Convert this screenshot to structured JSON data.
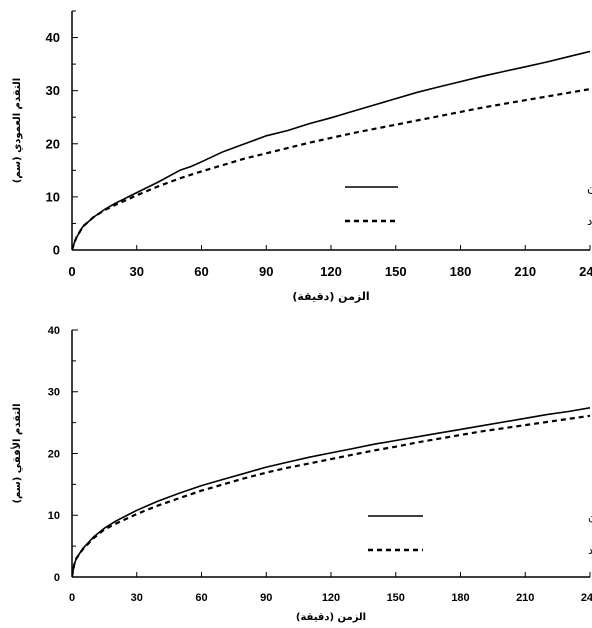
{
  "chart_data": [
    {
      "type": "line",
      "xlabel": "الزمن (دقيقة)",
      "ylabel": "التقدم العمودي (سم)",
      "xlim": [
        0,
        240
      ],
      "ylim": [
        0,
        45
      ],
      "xticks": [
        0,
        30,
        60,
        90,
        120,
        150,
        180,
        210,
        240
      ],
      "yticks": [
        0,
        10,
        20,
        30,
        40
      ],
      "grid": false,
      "legend_position": "right",
      "series": [
        {
          "name": "التقدم الناتج من تداخل منقطين",
          "style": "solid",
          "x": [
            0,
            1,
            2,
            5,
            10,
            15,
            20,
            30,
            40,
            50,
            55,
            60,
            70,
            80,
            90,
            100,
            110,
            120,
            130,
            140,
            150,
            160,
            170,
            180,
            190,
            200,
            210,
            220,
            230,
            240,
            245
          ],
          "y": [
            0,
            1.3,
            2.3,
            4.4,
            6.2,
            7.6,
            8.8,
            10.8,
            12.8,
            15.0,
            15.7,
            16.6,
            18.5,
            20.0,
            21.5,
            22.5,
            23.8,
            24.9,
            26.1,
            27.3,
            28.5,
            29.7,
            30.7,
            31.7,
            32.7,
            33.6,
            34.5,
            35.4,
            36.4,
            37.4,
            38.0
          ]
        },
        {
          "name": "التقدم الناتج من منقط منفرد",
          "style": "dashed",
          "x": [
            0,
            1,
            2,
            5,
            10,
            15,
            20,
            30,
            40,
            50,
            60,
            70,
            80,
            90,
            100,
            110,
            120,
            130,
            140,
            150,
            160,
            170,
            180,
            190,
            200,
            210,
            220,
            230,
            240,
            245
          ],
          "y": [
            0,
            1.3,
            2.3,
            4.4,
            6.2,
            7.5,
            8.5,
            10.3,
            12.0,
            13.5,
            14.8,
            16.0,
            17.2,
            18.2,
            19.2,
            20.2,
            21.1,
            22.0,
            22.8,
            23.6,
            24.4,
            25.2,
            26.0,
            26.8,
            27.5,
            28.2,
            28.9,
            29.6,
            30.3,
            30.8
          ]
        }
      ]
    },
    {
      "type": "line",
      "xlabel": "الزمن (دقيقة)",
      "ylabel": "التقدم الأفقي (سم)",
      "xlim": [
        0,
        240
      ],
      "ylim": [
        0,
        40
      ],
      "xticks": [
        0,
        30,
        60,
        90,
        120,
        150,
        180,
        210,
        240
      ],
      "yticks": [
        0,
        10,
        20,
        30,
        40
      ],
      "grid": false,
      "legend_position": "right",
      "series": [
        {
          "name": "التقدم الناتج من تداخل منقطين",
          "style": "solid",
          "x": [
            0,
            1,
            2,
            5,
            10,
            15,
            20,
            30,
            40,
            50,
            60,
            70,
            80,
            90,
            100,
            110,
            120,
            130,
            140,
            150,
            160,
            170,
            180,
            190,
            200,
            210,
            220,
            230,
            240,
            245
          ],
          "y": [
            0,
            2.0,
            3.0,
            4.6,
            6.5,
            7.9,
            9.0,
            10.8,
            12.3,
            13.6,
            14.8,
            15.8,
            16.8,
            17.8,
            18.6,
            19.4,
            20.1,
            20.8,
            21.5,
            22.1,
            22.7,
            23.3,
            23.9,
            24.5,
            25.1,
            25.7,
            26.3,
            26.8,
            27.4,
            27.9
          ]
        },
        {
          "name": "التقدم الناتج من منقط منفرد",
          "style": "dashed",
          "x": [
            0,
            1,
            2,
            5,
            10,
            15,
            20,
            30,
            40,
            50,
            60,
            70,
            80,
            90,
            100,
            110,
            120,
            130,
            140,
            150,
            160,
            170,
            180,
            190,
            200,
            210,
            220,
            230,
            240,
            245
          ],
          "y": [
            0,
            2.0,
            3.0,
            4.5,
            6.3,
            7.7,
            8.6,
            10.2,
            11.6,
            12.8,
            14.0,
            15.0,
            16.0,
            16.9,
            17.7,
            18.4,
            19.1,
            19.8,
            20.5,
            21.1,
            21.8,
            22.4,
            23.0,
            23.6,
            24.1,
            24.6,
            25.1,
            25.6,
            26.1,
            26.4
          ]
        }
      ]
    }
  ]
}
